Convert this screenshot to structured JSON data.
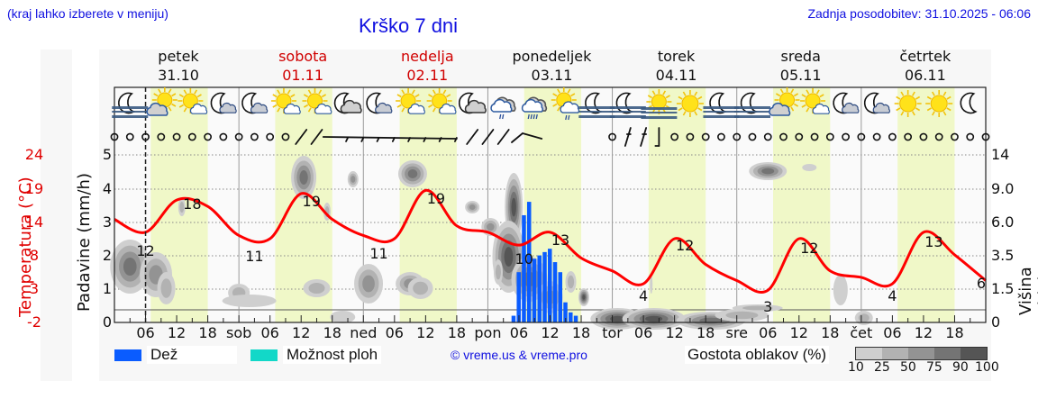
{
  "header": {
    "note": "(kraj lahko izberete v meniju)",
    "title": "Krško 7 dni",
    "updated": "Zadnja posodobitev: 31.10.2025 - 06:06"
  },
  "days": [
    {
      "name": "petek",
      "date": "31.10",
      "weekend": false
    },
    {
      "name": "sobota",
      "date": "01.11",
      "weekend": true
    },
    {
      "name": "nedelja",
      "date": "02.11",
      "weekend": true
    },
    {
      "name": "ponedeljek",
      "date": "03.11",
      "weekend": false
    },
    {
      "name": "torek",
      "date": "04.11",
      "weekend": false
    },
    {
      "name": "sreda",
      "date": "05.11",
      "weekend": false
    },
    {
      "name": "četrtek",
      "date": "06.11",
      "weekend": false
    }
  ],
  "axes": {
    "temp_label": "Temperatura (°C)",
    "temp_ticks": [
      "24",
      "19",
      "14",
      "8",
      "3",
      "-2"
    ],
    "rain_label": "Padavine (mm/h)",
    "rain_ticks": [
      "5",
      "4",
      "3",
      "2",
      "1",
      "0"
    ],
    "cloud_label": "Višina oblakov (km)",
    "cloud_ticks": [
      "14",
      "9.0",
      "6.0",
      "3.5",
      "1.5",
      "0"
    ],
    "x_labels": [
      "06",
      "12",
      "18",
      "sob",
      "06",
      "12",
      "18",
      "ned",
      "06",
      "12",
      "18",
      "pon",
      "06",
      "12",
      "18",
      "tor",
      "06",
      "12",
      "18",
      "sre",
      "06",
      "12",
      "18",
      "čet",
      "06",
      "12",
      "18"
    ]
  },
  "icons": [
    "moon-fog",
    "sun-cloud",
    "sun-cloud-small",
    "moon-cloud",
    "moon-cloud",
    "sun-cloud-small",
    "sun-cloud-small",
    "moon-cloud-grey",
    "moon-cloud",
    "sun-cloud-small",
    "sun-cloud-small",
    "moon-cloud-grey",
    "rain-cloud",
    "heavy-rain-cloud",
    "sun-rain-cloud",
    "moon-fog",
    "moon-fog",
    "sun-fog",
    "sun",
    "moon-fog",
    "moon-fog",
    "sun-cloud-grey",
    "sun-cloud-small",
    "moon-cloud",
    "moon-cloud",
    "sun",
    "sun",
    "moon"
  ],
  "legend": {
    "rain": "Dež",
    "rain_color": "#0a5cff",
    "showers": "Možnost ploh",
    "showers_color": "#12d8c8",
    "copyright": "© vreme.us & vreme.pro",
    "cloud_density": "Gostota oblakov (%)",
    "cloud_scale": [
      "10",
      "25",
      "50",
      "75",
      "90",
      "100"
    ],
    "cloud_colors": [
      "#cfcfcf",
      "#b2b2b2",
      "#939393",
      "#747474",
      "#555555"
    ]
  },
  "chart_data": {
    "type": "line",
    "title": "Krško 7 dni",
    "xlabel": "",
    "ylabel": "Padavine (mm/h)",
    "ylim": [
      0,
      5
    ],
    "grid": true,
    "categories": [
      "pet 00",
      "pet 06",
      "pet 12",
      "pet 18",
      "sob 00",
      "sob 06",
      "sob 12",
      "sob 18",
      "ned 00",
      "ned 06",
      "ned 12",
      "ned 18",
      "pon 00",
      "pon 06",
      "pon 12",
      "pon 18",
      "tor 00",
      "tor 06",
      "tor 12",
      "tor 18",
      "sre 00",
      "sre 06",
      "sre 12",
      "sre 18",
      "čet 00",
      "čet 06",
      "čet 12",
      "čet 18",
      "pet 00"
    ],
    "series": [
      {
        "name": "Temperatura (°C)",
        "axis": "left-red",
        "values": [
          14,
          12,
          17,
          16,
          11.5,
          11,
          18,
          14,
          11.5,
          11,
          18.5,
          13,
          12,
          10,
          12,
          8,
          6,
          4,
          11,
          7,
          4.5,
          3,
          11,
          6,
          5,
          4,
          12,
          8.5,
          4.5
        ]
      },
      {
        "name": "Dež (mm/h)",
        "axis": "rain",
        "hours_pon": [
          5,
          6,
          7,
          8,
          9,
          10,
          11,
          12,
          13,
          14,
          15,
          16,
          17
        ],
        "values": [
          0.2,
          1.5,
          3.2,
          3.6,
          1.9,
          2.0,
          2.1,
          2.2,
          1.8,
          1.5,
          0.6,
          0.3,
          0.2
        ]
      }
    ],
    "annotations": {
      "temp_labels": [
        {
          "text": "12",
          "at": "pet 06"
        },
        {
          "text": "18",
          "at": "pet 14"
        },
        {
          "text": "11",
          "at": "sob 03"
        },
        {
          "text": "19",
          "at": "sob 14"
        },
        {
          "text": "11",
          "at": "ned 03"
        },
        {
          "text": "19",
          "at": "ned 14"
        },
        {
          "text": "10",
          "at": "pon 07"
        },
        {
          "text": "13",
          "at": "pon 14"
        },
        {
          "text": "4",
          "at": "tor 06"
        },
        {
          "text": "12",
          "at": "tor 14"
        },
        {
          "text": "3",
          "at": "sre 06"
        },
        {
          "text": "12",
          "at": "sre 14"
        },
        {
          "text": "4",
          "at": "čet 06"
        },
        {
          "text": "13",
          "at": "čet 14"
        },
        {
          "text": "6",
          "at": "end"
        }
      ],
      "now_marker": "pet 06"
    }
  }
}
